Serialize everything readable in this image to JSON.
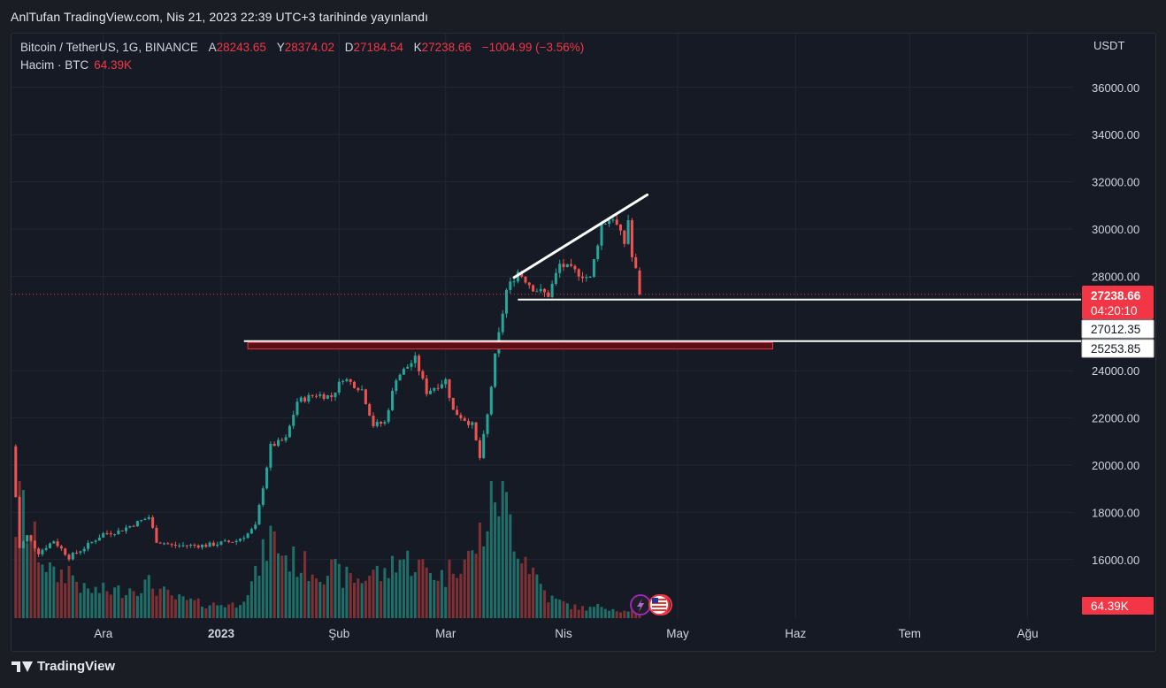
{
  "header": {
    "publish_line": "AnlTufan TradingView.com, Nis 21, 2023 22:39 UTC+3 tarihinde yayınlandı"
  },
  "legend": {
    "symbol": "Bitcoin / TetherUS, 1G, BINANCE",
    "open_label": "A",
    "open": "28243.65",
    "high_label": "Y",
    "high": "28374.02",
    "low_label": "D",
    "low": "27184.54",
    "close_label": "K",
    "close": "27238.66",
    "change": "−1004.99 (−3.56%)",
    "volume_label": "Hacim · BTC",
    "volume": "64.39K"
  },
  "footer": {
    "brand": "TradingView"
  },
  "colors": {
    "up": "#26a69a",
    "down": "#ef5350",
    "up_volume": "#1f6e68",
    "down_volume": "#7f3033",
    "price_label_bg": "#f23645",
    "grid": "#232733",
    "text": "#d1d4dc"
  },
  "icons": [
    "lightning-icon",
    "us-flag-icon"
  ],
  "chart_data": {
    "type": "candlestick",
    "currency_label": "USDT",
    "y_ticks": [
      "36000.00",
      "34000.00",
      "32000.00",
      "30000.00",
      "28000.00",
      "24000.00",
      "22000.00",
      "20000.00",
      "18000.00",
      "16000.00"
    ],
    "y_tick_values": [
      36000,
      34000,
      32000,
      30000,
      28000,
      24000,
      22000,
      20000,
      18000,
      16000
    ],
    "x_ticks": [
      "Ara",
      "2023",
      "Şub",
      "Mar",
      "Nis",
      "May",
      "Haz",
      "Tem",
      "Ağu"
    ],
    "x_tick_dates": [
      "2022-12-01",
      "2023-01-01",
      "2023-02-01",
      "2023-03-01",
      "2023-04-01",
      "2023-05-01",
      "2023-06-01",
      "2023-07-01",
      "2023-08-01"
    ],
    "price_labels": {
      "last_price": "27238.66",
      "countdown": "04:20:10",
      "support_1": "27012.35",
      "support_2": "25253.85",
      "volume": "64.39K"
    },
    "horizontal_lines": [
      27012.35,
      25253.85
    ],
    "zone": {
      "from_date": "2023-01-08",
      "to_date": "2023-05-26",
      "low": 24920,
      "high": 25190
    },
    "trend_line": {
      "from_date": "2023-03-19",
      "from_price": 27950,
      "to_date": "2023-04-23",
      "to_price": 31450
    },
    "anchors": [
      {
        "date": "2022-11-07",
        "price": 20800,
        "vol": 0.45
      },
      {
        "date": "2022-11-09",
        "price": 16500,
        "vol": 0.95
      },
      {
        "date": "2022-11-11",
        "price": 17000,
        "vol": 0.65
      },
      {
        "date": "2022-11-14",
        "price": 16300,
        "vol": 0.5
      },
      {
        "date": "2022-11-18",
        "price": 16800,
        "vol": 0.3
      },
      {
        "date": "2022-11-22",
        "price": 16100,
        "vol": 0.35
      },
      {
        "date": "2022-11-26",
        "price": 16500,
        "vol": 0.2
      },
      {
        "date": "2022-12-01",
        "price": 17100,
        "vol": 0.2
      },
      {
        "date": "2022-12-05",
        "price": 17200,
        "vol": 0.2
      },
      {
        "date": "2022-12-13",
        "price": 17800,
        "vol": 0.25
      },
      {
        "date": "2022-12-15",
        "price": 16800,
        "vol": 0.22
      },
      {
        "date": "2022-12-19",
        "price": 16600,
        "vol": 0.15
      },
      {
        "date": "2022-12-28",
        "price": 16600,
        "vol": 0.1
      },
      {
        "date": "2023-01-05",
        "price": 16800,
        "vol": 0.1
      },
      {
        "date": "2023-01-08",
        "price": 17100,
        "vol": 0.2
      },
      {
        "date": "2023-01-10",
        "price": 17400,
        "vol": 0.3
      },
      {
        "date": "2023-01-14",
        "price": 20800,
        "vol": 0.6
      },
      {
        "date": "2023-01-18",
        "price": 21100,
        "vol": 0.45
      },
      {
        "date": "2023-01-21",
        "price": 22700,
        "vol": 0.4
      },
      {
        "date": "2023-01-26",
        "price": 23000,
        "vol": 0.35
      },
      {
        "date": "2023-01-30",
        "price": 22900,
        "vol": 0.35
      },
      {
        "date": "2023-02-02",
        "price": 23700,
        "vol": 0.3
      },
      {
        "date": "2023-02-07",
        "price": 23200,
        "vol": 0.28
      },
      {
        "date": "2023-02-10",
        "price": 21700,
        "vol": 0.35
      },
      {
        "date": "2023-02-13",
        "price": 21800,
        "vol": 0.3
      },
      {
        "date": "2023-02-16",
        "price": 23700,
        "vol": 0.45
      },
      {
        "date": "2023-02-21",
        "price": 24500,
        "vol": 0.4
      },
      {
        "date": "2023-02-24",
        "price": 23100,
        "vol": 0.35
      },
      {
        "date": "2023-03-01",
        "price": 23600,
        "vol": 0.3
      },
      {
        "date": "2023-03-03",
        "price": 22300,
        "vol": 0.4
      },
      {
        "date": "2023-03-08",
        "price": 21700,
        "vol": 0.45
      },
      {
        "date": "2023-03-10",
        "price": 20300,
        "vol": 0.6
      },
      {
        "date": "2023-03-12",
        "price": 22100,
        "vol": 0.7
      },
      {
        "date": "2023-03-14",
        "price": 24600,
        "vol": 0.95
      },
      {
        "date": "2023-03-17",
        "price": 27400,
        "vol": 0.8
      },
      {
        "date": "2023-03-20",
        "price": 28200,
        "vol": 0.55
      },
      {
        "date": "2023-03-24",
        "price": 27500,
        "vol": 0.35
      },
      {
        "date": "2023-03-28",
        "price": 27200,
        "vol": 0.15
      },
      {
        "date": "2023-03-31",
        "price": 28500,
        "vol": 0.12
      },
      {
        "date": "2023-04-04",
        "price": 28200,
        "vol": 0.08
      },
      {
        "date": "2023-04-08",
        "price": 27900,
        "vol": 0.07
      },
      {
        "date": "2023-04-11",
        "price": 30200,
        "vol": 0.09
      },
      {
        "date": "2023-04-14",
        "price": 30500,
        "vol": 0.07
      },
      {
        "date": "2023-04-17",
        "price": 29400,
        "vol": 0.05
      },
      {
        "date": "2023-04-18",
        "price": 30400,
        "vol": 0.06
      },
      {
        "date": "2023-04-19",
        "price": 28800,
        "vol": 0.05
      },
      {
        "date": "2023-04-20",
        "price": 28243.65,
        "vol": 0.05
      },
      {
        "date": "2023-04-21",
        "price": 27238.66,
        "vol": 0.02
      }
    ]
  }
}
